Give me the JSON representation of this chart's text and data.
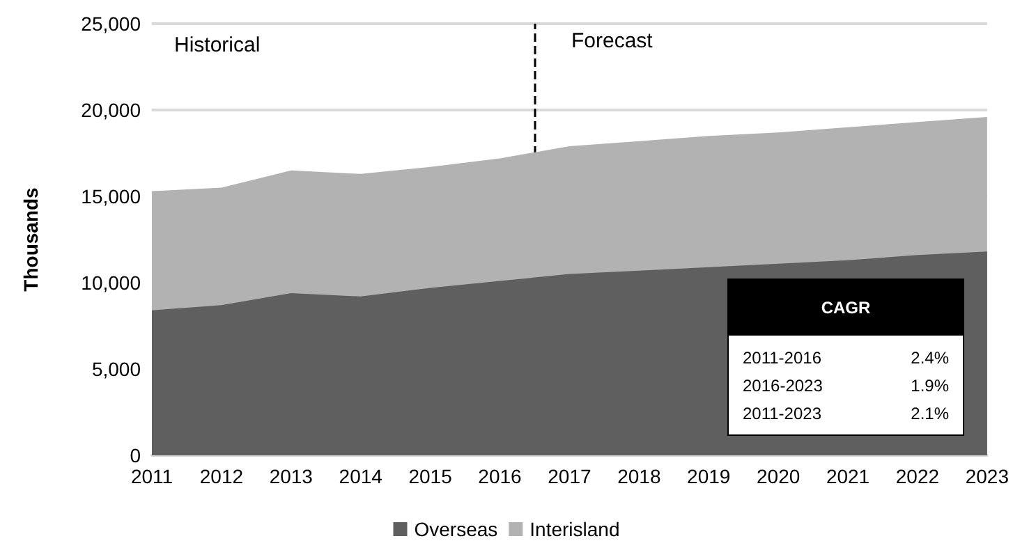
{
  "chart_data": {
    "type": "area",
    "stacked": true,
    "ylabel": "Thousands",
    "x": [
      2011,
      2012,
      2013,
      2014,
      2015,
      2016,
      2017,
      2018,
      2019,
      2020,
      2021,
      2022,
      2023
    ],
    "series": [
      {
        "name": "Overseas",
        "color": "#5f5f5f",
        "values": [
          8400,
          8700,
          9400,
          9200,
          9700,
          10100,
          10500,
          10700,
          10900,
          11100,
          11300,
          11600,
          11800
        ]
      },
      {
        "name": "Interisland",
        "color": "#b2b2b2",
        "values": [
          6900,
          6800,
          7100,
          7100,
          7000,
          7100,
          7400,
          7500,
          7600,
          7600,
          7700,
          7700,
          7800
        ]
      }
    ],
    "xlim": [
      2011,
      2023
    ],
    "xticks": [
      2011,
      2012,
      2013,
      2014,
      2015,
      2016,
      2017,
      2018,
      2019,
      2020,
      2021,
      2022,
      2023
    ],
    "ylim": [
      0,
      25000
    ],
    "yticks": [
      0,
      {
        "value": 5000,
        "label": "5,000"
      },
      {
        "value": 10000,
        "label": "10,000"
      },
      {
        "value": 15000,
        "label": "15,000"
      },
      {
        "value": 20000,
        "label": "20,000"
      },
      {
        "value": 25000,
        "label": "25,000"
      }
    ],
    "ref_lines": [
      {
        "axis": "x",
        "value": 2016.5,
        "color": "#000000",
        "line_style": "dashed"
      }
    ],
    "annotations": [
      "Historical",
      "Forecast",
      "CAGR",
      "2011-2016",
      "2.4%",
      "2016-2023",
      "1.9%",
      "2011-2023",
      "2.1%"
    ],
    "grid": "y",
    "legend": "bottom"
  }
}
